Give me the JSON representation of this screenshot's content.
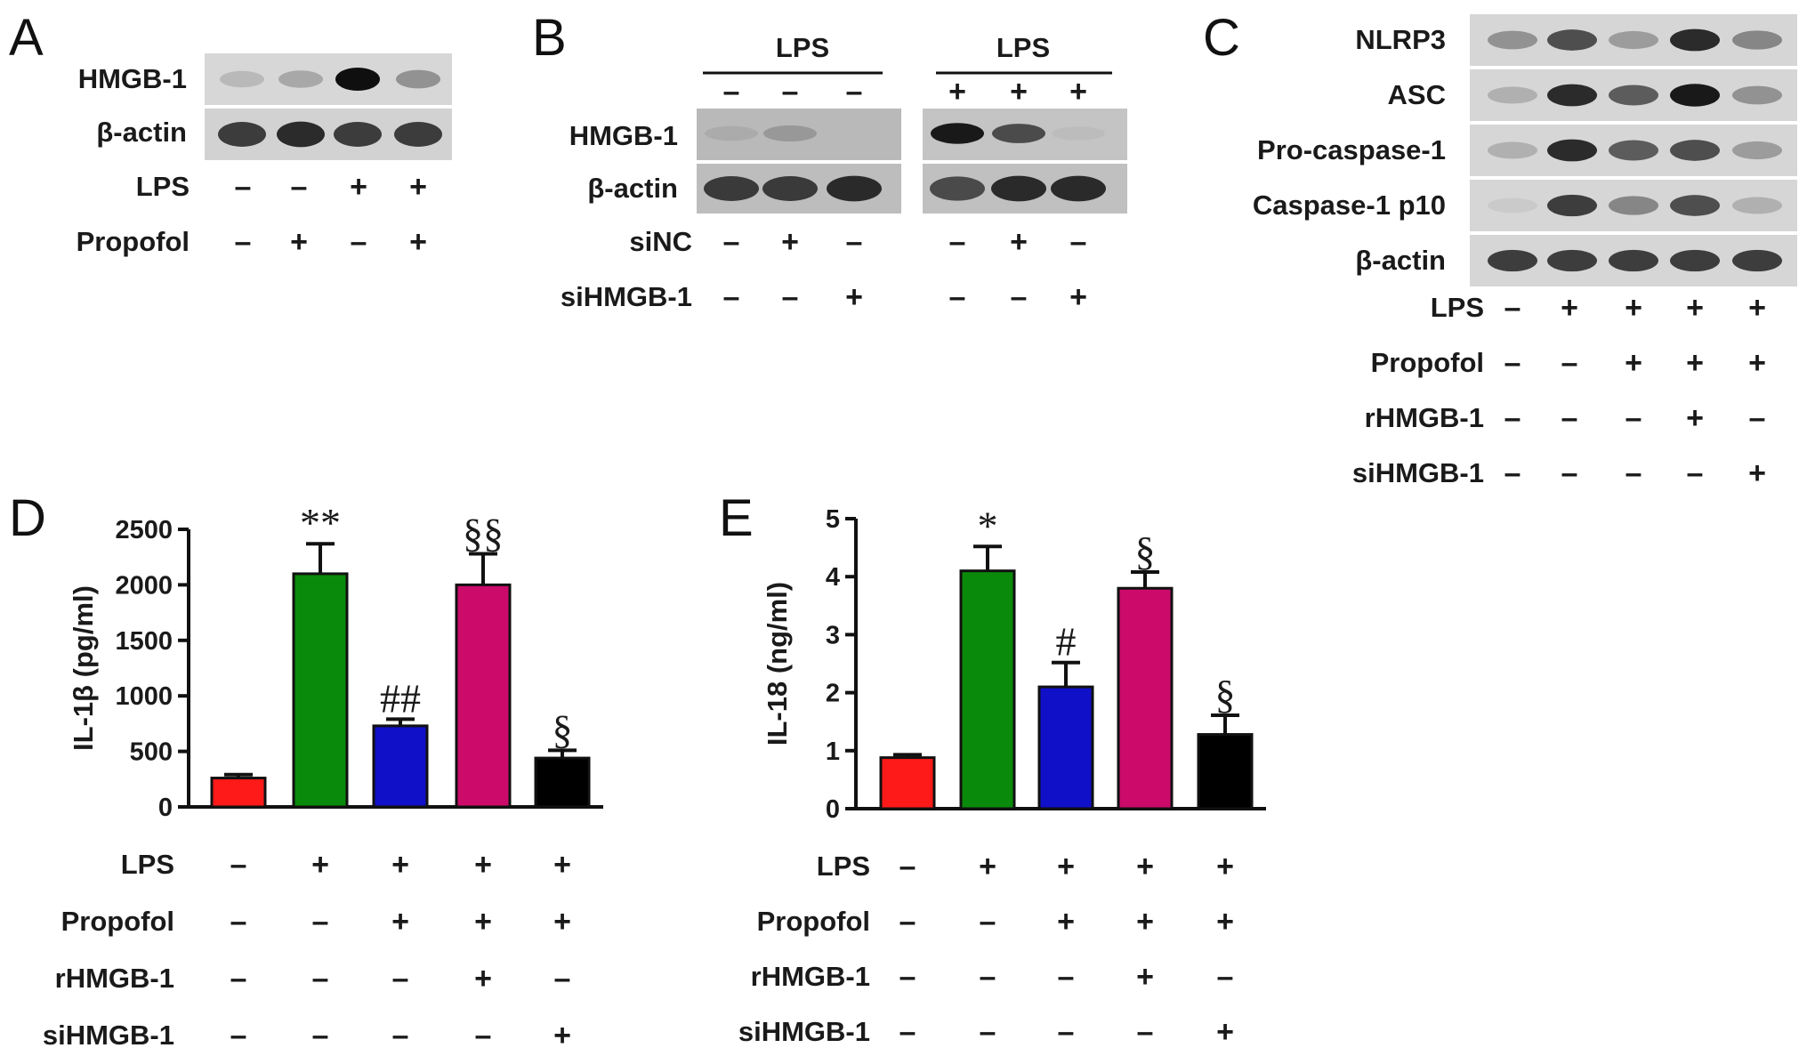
{
  "panels": {
    "A": {
      "label": "A",
      "rows": [
        "HMGB-1",
        "β-actin"
      ],
      "lanes": 4,
      "bands": {
        "HMGB-1": [
          0.35,
          0.45,
          1.0,
          0.55
        ],
        "β-actin": [
          0.85,
          0.9,
          0.85,
          0.85
        ]
      },
      "conditions": [
        {
          "name": "LPS",
          "signs": [
            "–",
            "–",
            "+",
            "+"
          ]
        },
        {
          "name": "Propofol",
          "signs": [
            "–",
            "+",
            "–",
            "+"
          ]
        }
      ]
    },
    "B": {
      "label": "B",
      "groups": [
        {
          "header": "LPS",
          "signs": [
            "–",
            "–",
            "–"
          ]
        },
        {
          "header": "LPS",
          "signs": [
            "+",
            "+",
            "+"
          ]
        }
      ],
      "rows": [
        "HMGB-1",
        "β-actin"
      ],
      "bands": {
        "HMGB-1": [
          0.3,
          0.45,
          0.05,
          0.95,
          0.8,
          0.2
        ],
        "β-actin": [
          0.85,
          0.85,
          0.9,
          0.8,
          0.9,
          0.9
        ]
      },
      "conditions": [
        {
          "name": "siNC",
          "signs": [
            "–",
            "+",
            "–",
            "–",
            "+",
            "–"
          ]
        },
        {
          "name": "siHMGB-1",
          "signs": [
            "–",
            "–",
            "+",
            "–",
            "–",
            "+"
          ]
        }
      ]
    },
    "C": {
      "label": "C",
      "rows": [
        "NLRP3",
        "ASC",
        "Pro-caspase-1",
        "Caspase-1 p10",
        "β-actin"
      ],
      "lanes": 5,
      "bands": {
        "NLRP3": [
          0.55,
          0.8,
          0.5,
          0.9,
          0.6
        ],
        "ASC": [
          0.4,
          0.9,
          0.75,
          0.95,
          0.55
        ],
        "Pro-caspase-1": [
          0.4,
          0.9,
          0.75,
          0.8,
          0.5
        ],
        "Caspase-1 p10": [
          0.2,
          0.85,
          0.6,
          0.8,
          0.4
        ],
        "β-actin": [
          0.85,
          0.85,
          0.85,
          0.85,
          0.85
        ]
      },
      "conditions": [
        {
          "name": "LPS",
          "signs": [
            "–",
            "+",
            "+",
            "+",
            "+"
          ]
        },
        {
          "name": "Propofol",
          "signs": [
            "–",
            "–",
            "+",
            "+",
            "+"
          ]
        },
        {
          "name": "rHMGB-1",
          "signs": [
            "–",
            "–",
            "–",
            "+",
            "–"
          ]
        },
        {
          "name": "siHMGB-1",
          "signs": [
            "–",
            "–",
            "–",
            "–",
            "+"
          ]
        }
      ]
    },
    "D": {
      "label": "D"
    },
    "E": {
      "label": "E"
    }
  },
  "bar_conditions": [
    {
      "name": "LPS",
      "signs": [
        "–",
        "+",
        "+",
        "+",
        "+"
      ]
    },
    {
      "name": "Propofol",
      "signs": [
        "–",
        "–",
        "+",
        "+",
        "+"
      ]
    },
    {
      "name": "rHMGB-1",
      "signs": [
        "–",
        "–",
        "–",
        "+",
        "–"
      ]
    },
    {
      "name": "siHMGB-1",
      "signs": [
        "–",
        "–",
        "–",
        "–",
        "+"
      ]
    }
  ],
  "colors": {
    "bar1": "#ff1a1a",
    "bar2": "#0a8a0a",
    "bar3": "#1010c8",
    "bar4": "#cc0a6a",
    "bar5": "#000000"
  },
  "chart_data": [
    {
      "type": "bar",
      "panel": "D",
      "categories": [
        "1",
        "2",
        "3",
        "4",
        "5"
      ],
      "values": [
        260,
        2100,
        730,
        2000,
        440
      ],
      "errors": [
        30,
        270,
        60,
        280,
        70
      ],
      "annotations": [
        "",
        "**",
        "##",
        "§§",
        "§"
      ],
      "ylabel": "IL-1β (pg/ml)",
      "ylim": [
        0,
        2500
      ],
      "yticks": [
        "0",
        "500",
        "1000",
        "1500",
        "2000",
        "2500"
      ]
    },
    {
      "type": "bar",
      "panel": "E",
      "categories": [
        "1",
        "2",
        "3",
        "4",
        "5"
      ],
      "values": [
        0.88,
        4.1,
        2.1,
        3.8,
        1.28
      ],
      "errors": [
        0.05,
        0.42,
        0.42,
        0.28,
        0.33
      ],
      "annotations": [
        "",
        "*",
        "#",
        "§",
        "§"
      ],
      "ylabel": "IL-18 (ng/ml)",
      "ylim": [
        0,
        5
      ],
      "yticks": [
        "0",
        "1",
        "2",
        "3",
        "4",
        "5"
      ]
    }
  ]
}
